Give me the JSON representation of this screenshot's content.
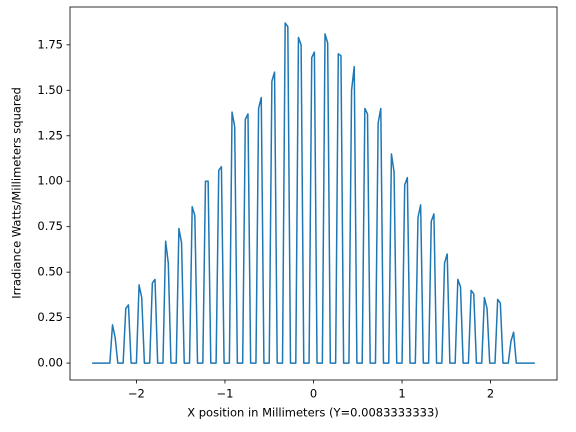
{
  "chart_data": {
    "type": "line",
    "xlabel": "X position in Millimeters (Y=0.0083333333)",
    "ylabel": "Irradiance Watts/Millimeters squared",
    "color": "#1f77b4",
    "x": [
      -2.5,
      -2.3,
      -2.27,
      -2.24,
      -2.21,
      -2.15,
      -2.12,
      -2.09,
      -2.06,
      -2.0,
      -1.97,
      -1.94,
      -1.91,
      -1.85,
      -1.82,
      -1.79,
      -1.76,
      -1.7,
      -1.67,
      -1.64,
      -1.61,
      -1.55,
      -1.52,
      -1.49,
      -1.46,
      -1.4,
      -1.37,
      -1.34,
      -1.31,
      -1.25,
      -1.22,
      -1.19,
      -1.16,
      -1.1,
      -1.07,
      -1.04,
      -1.01,
      -0.95,
      -0.92,
      -0.89,
      -0.86,
      -0.8,
      -0.77,
      -0.74,
      -0.71,
      -0.65,
      -0.62,
      -0.59,
      -0.56,
      -0.5,
      -0.47,
      -0.44,
      -0.41,
      -0.35,
      -0.32,
      -0.29,
      -0.26,
      -0.2,
      -0.17,
      -0.14,
      -0.11,
      -0.05,
      -0.02,
      0.01,
      0.04,
      0.1,
      0.13,
      0.16,
      0.19,
      0.25,
      0.28,
      0.31,
      0.34,
      0.4,
      0.43,
      0.46,
      0.49,
      0.55,
      0.58,
      0.61,
      0.64,
      0.7,
      0.73,
      0.76,
      0.79,
      0.85,
      0.88,
      0.91,
      0.94,
      1.0,
      1.03,
      1.06,
      1.09,
      1.15,
      1.18,
      1.21,
      1.24,
      1.3,
      1.33,
      1.36,
      1.39,
      1.45,
      1.48,
      1.51,
      1.54,
      1.6,
      1.63,
      1.66,
      1.69,
      1.75,
      1.78,
      1.81,
      1.84,
      1.9,
      1.93,
      1.96,
      1.99,
      2.05,
      2.08,
      2.11,
      2.14,
      2.2,
      2.23,
      2.26,
      2.29,
      2.5
    ],
    "values": [
      0,
      0,
      0.21,
      0.14,
      0,
      0,
      0.3,
      0.32,
      0,
      0,
      0.43,
      0.36,
      0,
      0,
      0.44,
      0.46,
      0,
      0,
      0.67,
      0.55,
      0,
      0,
      0.74,
      0.66,
      0,
      0,
      0.86,
      0.81,
      0,
      0,
      1.0,
      1.0,
      0,
      0,
      1.06,
      1.08,
      0,
      0,
      1.38,
      1.3,
      0,
      0,
      1.34,
      1.37,
      0,
      0,
      1.4,
      1.46,
      0,
      0,
      1.55,
      1.6,
      0,
      0,
      1.87,
      1.85,
      0,
      0,
      1.79,
      1.75,
      0,
      0,
      1.68,
      1.71,
      0,
      0,
      1.81,
      1.76,
      0,
      0,
      1.7,
      1.69,
      0,
      0,
      1.5,
      1.63,
      0,
      0,
      1.4,
      1.37,
      0,
      0,
      1.32,
      1.4,
      0,
      0,
      1.15,
      1.05,
      0,
      0,
      0.98,
      1.02,
      0,
      0,
      0.8,
      0.87,
      0,
      0,
      0.78,
      0.82,
      0,
      0,
      0.55,
      0.6,
      0,
      0,
      0.46,
      0.42,
      0,
      0,
      0.4,
      0.38,
      0,
      0,
      0.36,
      0.3,
      0,
      0,
      0.35,
      0.33,
      0,
      0,
      0.12,
      0.17,
      0,
      0
    ],
    "xlim": [
      -2.75,
      2.75
    ],
    "ylim": [
      -0.093,
      1.958
    ],
    "xticks": [
      {
        "value": -2,
        "label": "−2"
      },
      {
        "value": -1,
        "label": "−1"
      },
      0,
      1,
      2
    ],
    "yticks": [
      {
        "value": 0,
        "label": "0.00"
      },
      {
        "value": 0.25,
        "label": "0.25"
      },
      {
        "value": 0.5,
        "label": "0.50"
      },
      {
        "value": 0.75,
        "label": "0.75"
      },
      {
        "value": 1,
        "label": "1.00"
      },
      {
        "value": 1.25,
        "label": "1.25"
      },
      {
        "value": 1.5,
        "label": "1.50"
      },
      {
        "value": 1.75,
        "label": "1.75"
      }
    ]
  }
}
